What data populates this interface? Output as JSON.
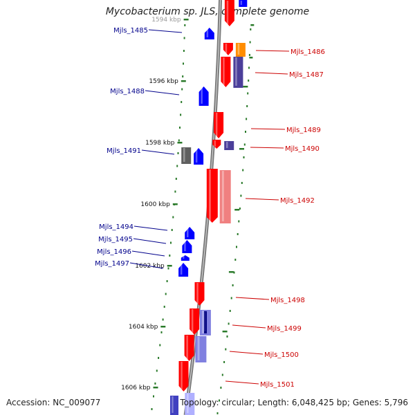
{
  "title": "Mycobacterium sp. JLS, complete genome",
  "footer": {
    "accession": "Accession: NC_009077",
    "summary": "Topology: circular; Length: 6,048,425 bp; Genes: 5,796"
  },
  "ruler": {
    "ticks": [
      {
        "label": "1594 kbp"
      },
      {
        "label": "1596 kbp"
      },
      {
        "label": "1598 kbp"
      },
      {
        "label": "1600 kbp"
      },
      {
        "label": "1602 kbp"
      },
      {
        "label": "1604 kbp"
      },
      {
        "label": "1606 kbp"
      }
    ]
  },
  "colors": {
    "forward_cds": "#ff0000",
    "reverse_cds": "#0000ff",
    "orange_feature": "#ff8c00",
    "purple_feature": "#4b3f9a",
    "grey_feature": "#5f5f5f",
    "backbone": "#888888",
    "tick_green": "#2a7a2a",
    "label_blue": "#00008b",
    "label_red": "#cc0000"
  },
  "genes": [
    {
      "id": "Mjls_1485",
      "strand": "reverse"
    },
    {
      "id": "Mjls_1486",
      "strand": "forward"
    },
    {
      "id": "Mjls_1487",
      "strand": "forward"
    },
    {
      "id": "Mjls_1488",
      "strand": "reverse"
    },
    {
      "id": "Mjls_1489",
      "strand": "forward"
    },
    {
      "id": "Mjls_1490",
      "strand": "forward"
    },
    {
      "id": "Mjls_1491",
      "strand": "reverse"
    },
    {
      "id": "Mjls_1492",
      "strand": "forward"
    },
    {
      "id": "Mjls_1494",
      "strand": "reverse"
    },
    {
      "id": "Mjls_1495",
      "strand": "reverse"
    },
    {
      "id": "Mjls_1496",
      "strand": "reverse"
    },
    {
      "id": "Mjls_1497",
      "strand": "reverse"
    },
    {
      "id": "Mjls_1498",
      "strand": "forward"
    },
    {
      "id": "Mjls_1499",
      "strand": "forward"
    },
    {
      "id": "Mjls_1500",
      "strand": "forward"
    },
    {
      "id": "Mjls_1501",
      "strand": "forward"
    }
  ]
}
